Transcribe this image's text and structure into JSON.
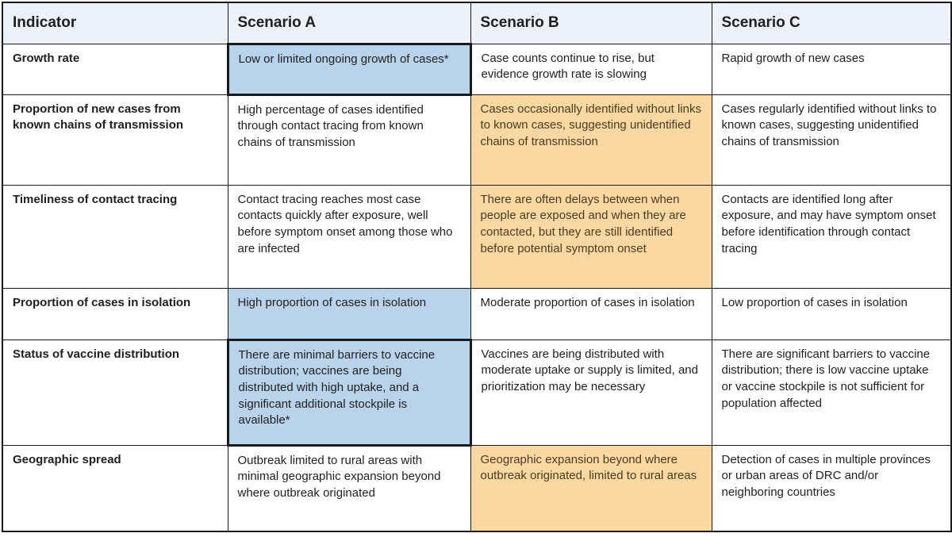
{
  "colors": {
    "header_bg": "#ecf1fa",
    "blue": "#b9d3ea",
    "orange": "#fad8a2",
    "border": "#1a1a1a",
    "text": "#1f1f1f",
    "orange_text": "#4a3a20"
  },
  "table": {
    "headers": [
      "Indicator",
      "Scenario A",
      "Scenario B",
      "Scenario C"
    ],
    "rows": [
      {
        "indicator": "Growth rate",
        "scenario_a": "Low or limited ongoing growth of cases*",
        "scenario_b": "Case counts continue to rise, but evidence growth rate is slowing",
        "scenario_c": "Rapid growth of new cases",
        "highlight": "A-blue-thick"
      },
      {
        "indicator": "Proportion of new cases from known chains of transmission",
        "scenario_a": "High percentage of cases identified through contact tracing from known chains of transmission",
        "scenario_b": "Cases occasionally identified without links to known cases, suggesting unidentified chains of transmission",
        "scenario_c": "Cases regularly identified without links to known cases, suggesting unidentified chains of transmission",
        "highlight": "B-orange"
      },
      {
        "indicator": "Timeliness of contact tracing",
        "scenario_a": "Contact tracing reaches most case contacts quickly after exposure, well before symptom onset among those who are infected",
        "scenario_b": "There are often delays between when people are exposed and when they are contacted, but they are still identified before potential symptom onset",
        "scenario_c": "Contacts are identified long after exposure, and may have symptom onset before identification through contact tracing",
        "highlight": "B-orange"
      },
      {
        "indicator": "Proportion of cases in isolation",
        "scenario_a": "High proportion of cases in isolation",
        "scenario_b": "Moderate proportion of cases in isolation",
        "scenario_c": "Low proportion of cases in isolation",
        "highlight": "A-blue"
      },
      {
        "indicator": "Status of vaccine distribution",
        "scenario_a": "There are minimal barriers to vaccine distribution; vaccines are being distributed with high uptake, and a significant additional stockpile is available*",
        "scenario_b": "Vaccines are being distributed with moderate uptake or supply is limited, and prioritization may be necessary",
        "scenario_c": "There are significant barriers to vaccine distribution; there is low vaccine uptake or vaccine stockpile is not sufficient for population affected",
        "highlight": "A-blue-thick"
      },
      {
        "indicator": "Geographic spread",
        "scenario_a": "Outbreak limited to rural areas with minimal geographic expansion beyond where outbreak originated",
        "scenario_b": "Geographic expansion beyond where outbreak originated, limited to rural areas",
        "scenario_c": "Detection of cases in multiple provinces or urban areas of DRC and/or neighboring countries",
        "highlight": "B-orange"
      }
    ]
  }
}
